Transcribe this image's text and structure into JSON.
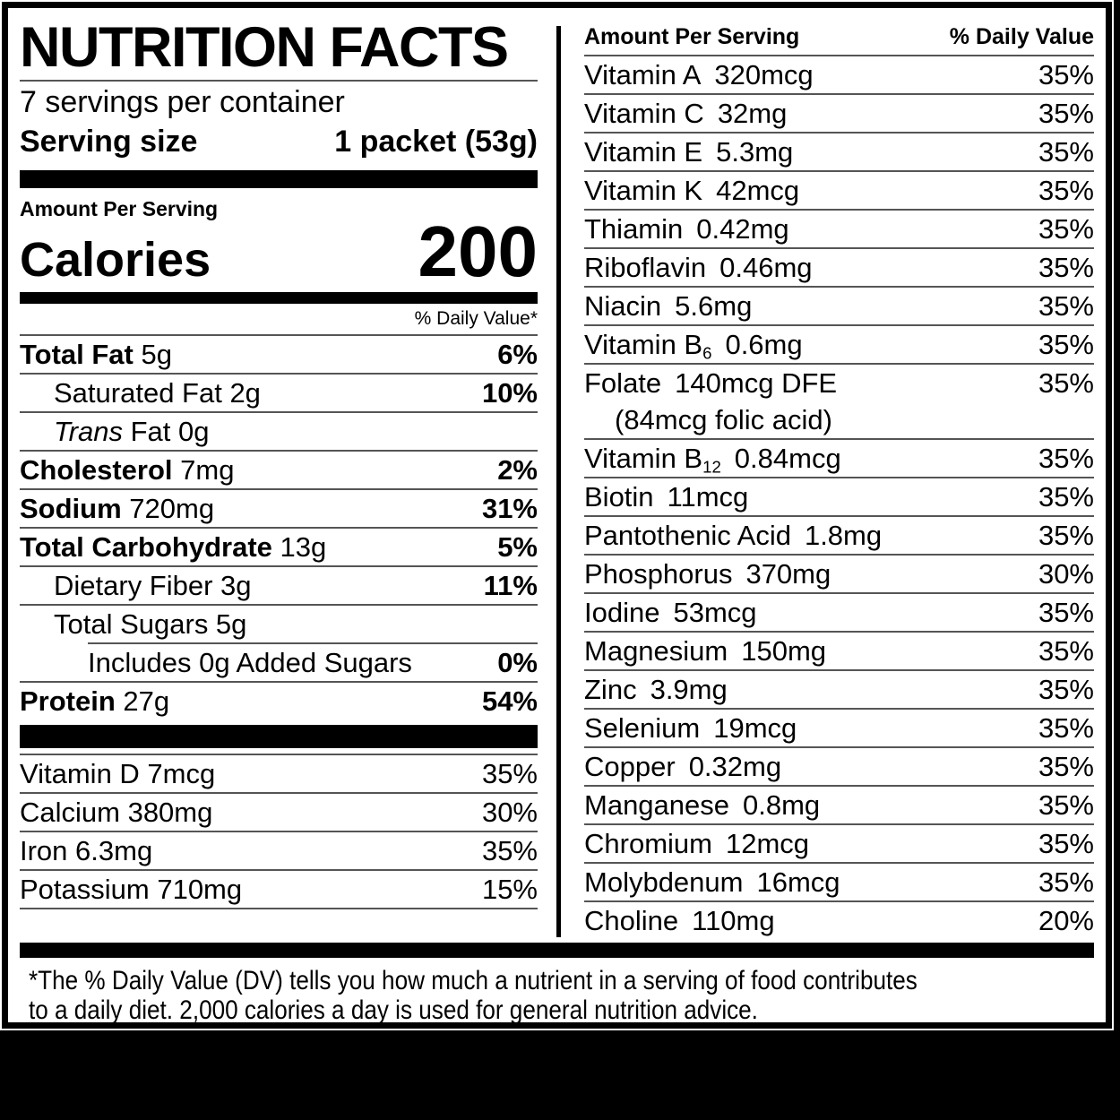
{
  "label": {
    "title": "NUTRITION FACTS",
    "servings_per_container": "7 servings per container",
    "serving_size_label": "Serving size",
    "serving_size_value": "1 packet (53g)",
    "amount_per_serving": "Amount Per Serving",
    "calories_label": "Calories",
    "calories_value": "200",
    "daily_value_note": "% Daily Value*",
    "nutrient_rows": [
      {
        "bold": "Total Fat",
        "rest": "5g",
        "dv": "6%",
        "dv_bold": true,
        "indent": 0
      },
      {
        "rest": "Saturated Fat 2g",
        "dv": "10%",
        "dv_bold": true,
        "indent": 1
      },
      {
        "italic": "Trans",
        "rest": "Fat 0g",
        "dv": "",
        "indent": 1
      },
      {
        "bold": "Cholesterol",
        "rest": "7mg",
        "dv": "2%",
        "dv_bold": true,
        "indent": 0
      },
      {
        "bold": "Sodium",
        "rest": "720mg",
        "dv": "31%",
        "dv_bold": true,
        "indent": 0
      },
      {
        "bold": "Total Carbohydrate",
        "rest": "13g",
        "dv": "5%",
        "dv_bold": true,
        "indent": 0
      },
      {
        "rest": "Dietary Fiber 3g",
        "dv": "11%",
        "dv_bold": true,
        "indent": 1
      },
      {
        "rest": "Total Sugars 5g",
        "dv": "",
        "indent": 1
      },
      {
        "rest": "Includes 0g Added Sugars",
        "dv": "0%",
        "dv_bold": true,
        "indent": 2,
        "sep_indent": true
      },
      {
        "bold": "Protein",
        "rest": "27g",
        "dv": "54%",
        "dv_bold": true,
        "indent": 0
      }
    ],
    "micro_rows_left": [
      {
        "rest": "Vitamin D 7mcg",
        "dv": "35%"
      },
      {
        "rest": "Calcium 380mg",
        "dv": "30%"
      },
      {
        "rest": "Iron 6.3mg",
        "dv": "35%"
      },
      {
        "rest": "Potassium 710mg",
        "dv": "15%"
      }
    ],
    "right_header": {
      "amount": "Amount Per Serving",
      "dv": "% Daily Value"
    },
    "right_rows": [
      {
        "name": "Vitamin A",
        "amount": "320mcg",
        "dv": "35%"
      },
      {
        "name": "Vitamin C",
        "amount": "32mg",
        "dv": "35%"
      },
      {
        "name": "Vitamin E",
        "amount": "5.3mg",
        "dv": "35%"
      },
      {
        "name": "Vitamin K",
        "amount": "42mcg",
        "dv": "35%"
      },
      {
        "name": "Thiamin",
        "amount": "0.42mg",
        "dv": "35%"
      },
      {
        "name": "Riboflavin",
        "amount": "0.46mg",
        "dv": "35%"
      },
      {
        "name": "Niacin",
        "amount": "5.6mg",
        "dv": "35%"
      },
      {
        "name": "Vitamin B",
        "name_sub": "6",
        "amount": "0.6mg",
        "dv": "35%"
      },
      {
        "name": "Folate",
        "amount": "140mcg DFE",
        "dv": "35%",
        "line2": "(84mcg folic acid)"
      },
      {
        "name": "Vitamin B",
        "name_sub": "12",
        "amount": "0.84mcg",
        "dv": "35%"
      },
      {
        "name": "Biotin",
        "amount": "11mcg",
        "dv": "35%"
      },
      {
        "name": "Pantothenic Acid",
        "amount": "1.8mg",
        "dv": "35%"
      },
      {
        "name": "Phosphorus",
        "amount": "370mg",
        "dv": "30%"
      },
      {
        "name": "Iodine",
        "amount": "53mcg",
        "dv": "35%"
      },
      {
        "name": "Magnesium",
        "amount": "150mg",
        "dv": "35%"
      },
      {
        "name": "Zinc",
        "amount": "3.9mg",
        "dv": "35%"
      },
      {
        "name": "Selenium",
        "amount": "19mcg",
        "dv": "35%"
      },
      {
        "name": "Copper",
        "amount": "0.32mg",
        "dv": "35%"
      },
      {
        "name": "Manganese",
        "amount": "0.8mg",
        "dv": "35%"
      },
      {
        "name": "Chromium",
        "amount": "12mcg",
        "dv": "35%"
      },
      {
        "name": "Molybdenum",
        "amount": "16mcg",
        "dv": "35%"
      },
      {
        "name": "Choline",
        "amount": "110mg",
        "dv": "20%"
      }
    ],
    "footnote_line1": "*The % Daily Value (DV) tells you how much a nutrient in a serving of food contributes",
    "footnote_line2": "to a daily diet. 2,000 calories a day is used for general nutrition advice."
  }
}
